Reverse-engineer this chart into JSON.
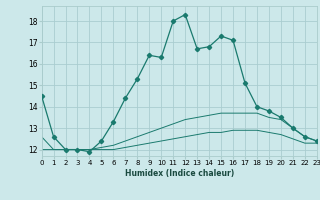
{
  "xlabel": "Humidex (Indice chaleur)",
  "ylabel": "",
  "bg_color": "#cce8ea",
  "grid_color": "#aacdd0",
  "line_color": "#1a7a6e",
  "xmin": 0,
  "xmax": 23,
  "ymin": 11.7,
  "ymax": 18.7,
  "yticks": [
    12,
    13,
    14,
    15,
    16,
    17,
    18
  ],
  "xticks": [
    0,
    1,
    2,
    3,
    4,
    5,
    6,
    7,
    8,
    9,
    10,
    11,
    12,
    13,
    14,
    15,
    16,
    17,
    18,
    19,
    20,
    21,
    22,
    23
  ],
  "line1_x": [
    0,
    1,
    2,
    3,
    4,
    5,
    6,
    7,
    8,
    9,
    10,
    11,
    12,
    13,
    14,
    15,
    16,
    17,
    18,
    19,
    20,
    21,
    22,
    23
  ],
  "line1_y": [
    14.5,
    12.6,
    12.0,
    12.0,
    11.9,
    12.4,
    13.3,
    14.4,
    15.3,
    16.4,
    16.3,
    18.0,
    18.3,
    16.7,
    16.8,
    17.3,
    17.1,
    15.1,
    14.0,
    13.8,
    13.5,
    13.0,
    12.6,
    12.4
  ],
  "line2_x": [
    0,
    1,
    2,
    3,
    4,
    5,
    6,
    7,
    8,
    9,
    10,
    11,
    12,
    13,
    14,
    15,
    16,
    17,
    18,
    19,
    20,
    21,
    22,
    23
  ],
  "line2_y": [
    12.6,
    12.0,
    12.0,
    12.0,
    12.0,
    12.1,
    12.2,
    12.4,
    12.6,
    12.8,
    13.0,
    13.2,
    13.4,
    13.5,
    13.6,
    13.7,
    13.7,
    13.7,
    13.7,
    13.5,
    13.4,
    13.0,
    12.6,
    12.4
  ],
  "line3_x": [
    0,
    1,
    2,
    3,
    4,
    5,
    6,
    7,
    8,
    9,
    10,
    11,
    12,
    13,
    14,
    15,
    16,
    17,
    18,
    19,
    20,
    21,
    22,
    23
  ],
  "line3_y": [
    12.0,
    12.0,
    12.0,
    12.0,
    12.0,
    12.0,
    12.0,
    12.1,
    12.2,
    12.3,
    12.4,
    12.5,
    12.6,
    12.7,
    12.8,
    12.8,
    12.9,
    12.9,
    12.9,
    12.8,
    12.7,
    12.5,
    12.3,
    12.3
  ]
}
